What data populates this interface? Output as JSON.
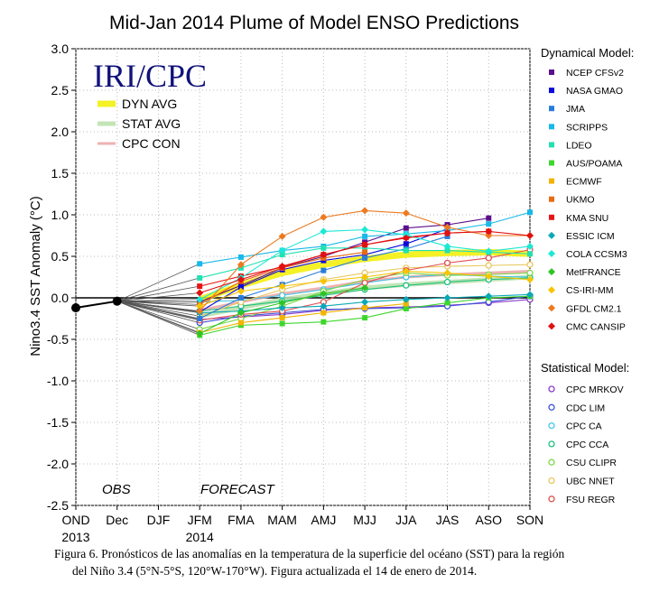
{
  "chart_data": {
    "type": "line",
    "title": "Mid-Jan 2014 Plume of Model ENSO Predictions",
    "ylabel": "Nino3.4 SST Anomaly (°C)",
    "ylim": [
      -2.5,
      3.0
    ],
    "yticks": [
      "3.0",
      "2.5",
      "2.0",
      "1.5",
      "1.0",
      "0.5",
      "0.0",
      "-0.5",
      "-1.0",
      "-1.5",
      "-2.0",
      "-2.5"
    ],
    "categories": [
      "OND",
      "Dec",
      "DJF",
      "JFM",
      "FMA",
      "MAM",
      "AMJ",
      "MJJ",
      "JJA",
      "JAS",
      "ASO",
      "SON"
    ],
    "year_labels": [
      {
        "at": "OND",
        "text": "2013"
      },
      {
        "at": "JFM",
        "text": "2014"
      }
    ],
    "section_labels": {
      "obs": "OBS",
      "forecast": "FORECAST"
    },
    "logo": "IRI/CPC",
    "grid": true,
    "observed": {
      "x": [
        "OND",
        "Dec"
      ],
      "values": [
        -0.12,
        -0.04
      ],
      "color": "#000000"
    },
    "forecast_x": [
      "JFM",
      "FMA",
      "MAM",
      "AMJ",
      "MJJ",
      "JJA",
      "JAS",
      "ASO",
      "SON"
    ],
    "dynamical_title": "Dynamical Model:",
    "statistical_title": "Statistical Model:",
    "dynamical": [
      {
        "name": "NCEP CFSv2",
        "color": "#5a0e8c",
        "marker": "square",
        "values": [
          -0.05,
          0.15,
          0.36,
          0.5,
          0.67,
          0.84,
          0.88,
          0.96,
          null
        ]
      },
      {
        "name": "NASA GMAO",
        "color": "#0b0bd9",
        "marker": "square",
        "values": [
          -0.17,
          0.13,
          0.34,
          0.45,
          0.52,
          0.65,
          0.83,
          null,
          null
        ]
      },
      {
        "name": "JMA",
        "color": "#2a7cd8",
        "marker": "square",
        "values": [
          -0.25,
          0.0,
          0.16,
          0.33,
          0.48,
          0.59,
          0.74,
          null,
          null
        ]
      },
      {
        "name": "SCRIPPS",
        "color": "#17b9e8",
        "marker": "square",
        "values": [
          0.41,
          0.49,
          0.57,
          0.62,
          0.74,
          0.77,
          0.81,
          0.89,
          1.03
        ]
      },
      {
        "name": "LDEO",
        "color": "#22e0b0",
        "marker": "square",
        "values": [
          0.24,
          0.36,
          0.52,
          0.6,
          0.6,
          0.57,
          0.57,
          0.55,
          0.53
        ]
      },
      {
        "name": "AUS/POAMA",
        "color": "#3fd62e",
        "marker": "square",
        "values": [
          -0.45,
          -0.33,
          -0.31,
          -0.29,
          -0.24,
          -0.13,
          -0.06,
          0.0,
          0.02
        ]
      },
      {
        "name": "ECMWF",
        "color": "#f2b400",
        "marker": "square",
        "values": [
          -0.42,
          -0.3,
          -0.24,
          -0.18,
          -0.12,
          -0.07,
          null,
          null,
          null
        ]
      },
      {
        "name": "UKMO",
        "color": "#e86a12",
        "marker": "square",
        "values": [
          -0.08,
          0.2,
          0.36,
          0.48,
          0.55,
          null,
          null,
          null,
          null
        ]
      },
      {
        "name": "KMA SNU",
        "color": "#e81414",
        "marker": "square",
        "values": [
          0.14,
          0.26,
          0.37,
          0.52,
          0.64,
          0.73,
          0.78,
          0.8,
          null
        ]
      },
      {
        "name": "ESSIC ICM",
        "color": "#0aa8b8",
        "marker": "diamond",
        "values": [
          -0.18,
          -0.16,
          -0.12,
          -0.1,
          -0.05,
          -0.02,
          0.0,
          0.02,
          0.04
        ]
      },
      {
        "name": "COLA CCSM3",
        "color": "#1de8d6",
        "marker": "diamond",
        "values": [
          -0.02,
          0.24,
          0.57,
          0.8,
          0.82,
          0.76,
          0.62,
          0.56,
          0.62
        ]
      },
      {
        "name": "MetFRANCE",
        "color": "#2ec425",
        "marker": "diamond",
        "values": [
          -0.43,
          -0.18,
          -0.06,
          0.05,
          0.12,
          null,
          null,
          null,
          null
        ]
      },
      {
        "name": "CS-IRI-MM",
        "color": "#f7c400",
        "marker": "diamond",
        "values": [
          -0.1,
          0.08,
          0.14,
          0.2,
          0.25,
          0.32,
          0.3,
          0.26,
          0.22
        ]
      },
      {
        "name": "GFDL CM2.1",
        "color": "#ec7a20",
        "marker": "diamond",
        "values": [
          -0.16,
          0.4,
          0.74,
          0.97,
          1.05,
          1.02,
          0.85,
          0.75,
          0.75
        ]
      },
      {
        "name": "CMC CANSIP",
        "color": "#e01010",
        "marker": "diamond",
        "values": [
          0.06,
          0.22,
          0.38,
          0.52,
          0.64,
          0.72,
          0.78,
          0.8,
          0.75
        ]
      }
    ],
    "statistical": [
      {
        "name": "CPC MRKOV",
        "color": "#8a3cc8",
        "marker": "circle",
        "values": [
          -0.26,
          -0.23,
          -0.2,
          -0.15,
          -0.12,
          -0.11,
          -0.09,
          -0.06,
          -0.02
        ]
      },
      {
        "name": "CDC LIM",
        "color": "#3b52d8",
        "marker": "circle",
        "values": [
          -0.3,
          -0.22,
          -0.18,
          -0.14,
          -0.13,
          -0.12,
          -0.1,
          -0.05,
          0.02
        ]
      },
      {
        "name": "CPC CA",
        "color": "#40c4e8",
        "marker": "circle",
        "values": [
          -0.05,
          -0.03,
          0.03,
          0.1,
          0.18,
          0.25,
          0.28,
          0.26,
          0.25
        ]
      },
      {
        "name": "CPC CCA",
        "color": "#20c080",
        "marker": "circle",
        "values": [
          -0.16,
          -0.1,
          -0.04,
          0.03,
          0.1,
          0.15,
          0.19,
          0.22,
          0.24
        ]
      },
      {
        "name": "CSU CLIPR",
        "color": "#7ed84a",
        "marker": "circle",
        "values": [
          -0.38,
          -0.25,
          -0.1,
          0.08,
          0.22,
          0.3,
          0.27,
          0.28,
          0.3
        ]
      },
      {
        "name": "UBC NNET",
        "color": "#e8c860",
        "marker": "circle",
        "values": [
          -0.22,
          -0.05,
          0.1,
          0.22,
          0.3,
          0.36,
          0.38,
          0.39,
          0.4
        ]
      },
      {
        "name": "FSU REGR",
        "color": "#e05050",
        "marker": "circle",
        "values": [
          -0.27,
          -0.2,
          -0.16,
          -0.05,
          0.18,
          0.33,
          0.42,
          0.48,
          0.58
        ]
      }
    ],
    "averages": [
      {
        "name": "DYN AVG",
        "color": "#f2ee00",
        "width": 7,
        "values": [
          -0.02,
          0.15,
          0.3,
          0.4,
          0.47,
          0.52,
          0.54,
          0.55,
          0.53
        ]
      },
      {
        "name": "STAT AVG",
        "color": "#b9e0a8",
        "width": 5,
        "values": [
          -0.22,
          -0.12,
          -0.02,
          0.05,
          0.12,
          0.16,
          0.19,
          0.22,
          0.25
        ]
      },
      {
        "name": "CPC CON",
        "color": "#eba4a4",
        "width": 3,
        "values": [
          -0.15,
          -0.05,
          0.05,
          0.12,
          0.2,
          0.25,
          0.28,
          0.3,
          0.32
        ]
      }
    ]
  },
  "caption": {
    "line1": "Figura 6. Pronósticos de las anomalías  en la temperatura  de la superficie  del océano  (SST)  para la región",
    "line2": "del Niño 3.4  (5°N-5°S,  120°W-170°W).  Figura  actualizada el 14 de enero de 2014."
  }
}
